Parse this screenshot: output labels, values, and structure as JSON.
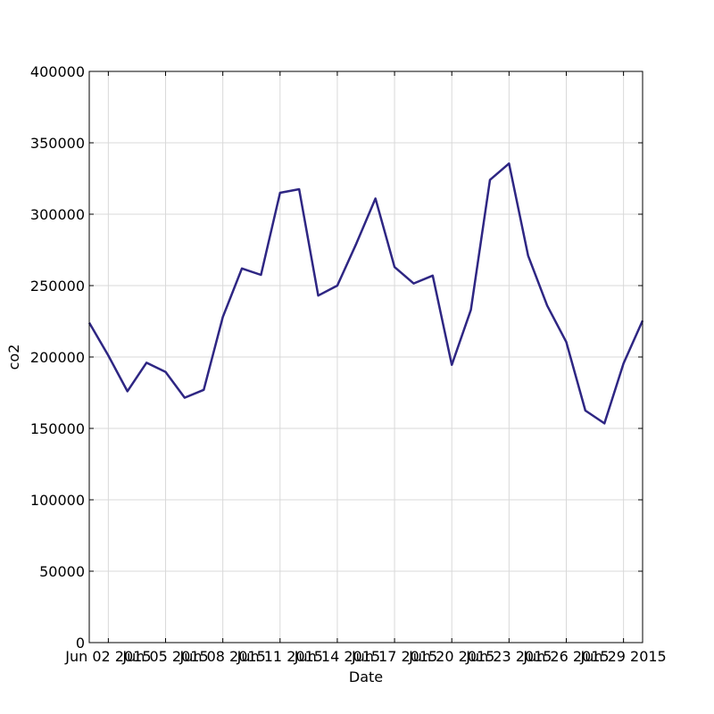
{
  "chart_data": {
    "type": "line",
    "title": "",
    "xlabel": "Date",
    "ylabel": "co2",
    "ylim": [
      0,
      400000
    ],
    "xlim": [
      "2015-06-01",
      "2015-06-30"
    ],
    "grid": true,
    "legend": "none",
    "line_color": "#2e2683",
    "x_ticks": [
      {
        "date": "2015-06-02",
        "label": "Jun 02 2015"
      },
      {
        "date": "2015-06-05",
        "label": "Jun 05 2015"
      },
      {
        "date": "2015-06-08",
        "label": "Jun 08 2015"
      },
      {
        "date": "2015-06-11",
        "label": "Jun 11 2015"
      },
      {
        "date": "2015-06-14",
        "label": "Jun 14 2015"
      },
      {
        "date": "2015-06-17",
        "label": "Jun 17 2015"
      },
      {
        "date": "2015-06-20",
        "label": "Jun 20 2015"
      },
      {
        "date": "2015-06-23",
        "label": "Jun 23 2015"
      },
      {
        "date": "2015-06-26",
        "label": "Jun 26 2015"
      },
      {
        "date": "2015-06-29",
        "label": "Jun 29 2015"
      }
    ],
    "y_ticks": [
      {
        "value": 0,
        "label": "0"
      },
      {
        "value": 50000,
        "label": "50000"
      },
      {
        "value": 100000,
        "label": "100000"
      },
      {
        "value": 150000,
        "label": "150000"
      },
      {
        "value": 200000,
        "label": "200000"
      },
      {
        "value": 250000,
        "label": "250000"
      },
      {
        "value": 300000,
        "label": "300000"
      },
      {
        "value": 350000,
        "label": "350000"
      },
      {
        "value": 400000,
        "label": "400000"
      }
    ],
    "series": [
      {
        "points": [
          {
            "x": "2015-06-01",
            "y": 224000
          },
          {
            "x": "2015-06-02",
            "y": 201000
          },
          {
            "x": "2015-06-03",
            "y": 176000
          },
          {
            "x": "2015-06-04",
            "y": 196000
          },
          {
            "x": "2015-06-05",
            "y": 189500
          },
          {
            "x": "2015-06-06",
            "y": 171500
          },
          {
            "x": "2015-06-07",
            "y": 177000
          },
          {
            "x": "2015-06-08",
            "y": 228000
          },
          {
            "x": "2015-06-09",
            "y": 262000
          },
          {
            "x": "2015-06-10",
            "y": 257500
          },
          {
            "x": "2015-06-11",
            "y": 315000
          },
          {
            "x": "2015-06-12",
            "y": 317500
          },
          {
            "x": "2015-06-13",
            "y": 243000
          },
          {
            "x": "2015-06-14",
            "y": 250000
          },
          {
            "x": "2015-06-15",
            "y": 279500
          },
          {
            "x": "2015-06-16",
            "y": 311000
          },
          {
            "x": "2015-06-17",
            "y": 263000
          },
          {
            "x": "2015-06-18",
            "y": 251500
          },
          {
            "x": "2015-06-19",
            "y": 257000
          },
          {
            "x": "2015-06-20",
            "y": 194500
          },
          {
            "x": "2015-06-21",
            "y": 233000
          },
          {
            "x": "2015-06-22",
            "y": 324000
          },
          {
            "x": "2015-06-23",
            "y": 335500
          },
          {
            "x": "2015-06-24",
            "y": 271000
          },
          {
            "x": "2015-06-25",
            "y": 236000
          },
          {
            "x": "2015-06-26",
            "y": 210500
          },
          {
            "x": "2015-06-27",
            "y": 162500
          },
          {
            "x": "2015-06-28",
            "y": 153500
          },
          {
            "x": "2015-06-29",
            "y": 195500
          },
          {
            "x": "2015-06-30",
            "y": 225500
          }
        ]
      }
    ]
  }
}
